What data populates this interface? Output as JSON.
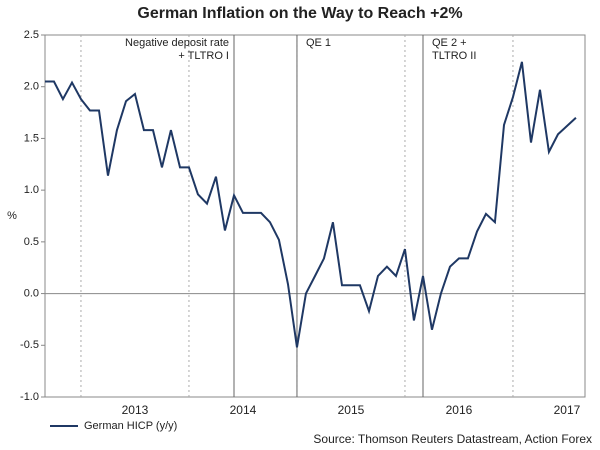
{
  "chart_data": {
    "type": "line",
    "title": "German Inflation on the Way to Reach +2%",
    "y_label": "%",
    "source": "Source: Thomson Reuters Datastream, Action Forex",
    "x": [
      2012.667,
      2012.75,
      2012.833,
      2012.917,
      2013,
      2013.083,
      2013.167,
      2013.25,
      2013.333,
      2013.417,
      2013.5,
      2013.583,
      2013.667,
      2013.75,
      2013.833,
      2013.917,
      2014,
      2014.083,
      2014.167,
      2014.25,
      2014.333,
      2014.417,
      2014.5,
      2014.583,
      2014.667,
      2014.75,
      2014.833,
      2014.917,
      2015,
      2015.083,
      2015.167,
      2015.25,
      2015.333,
      2015.417,
      2015.5,
      2015.583,
      2015.667,
      2015.75,
      2015.833,
      2015.917,
      2016,
      2016.083,
      2016.167,
      2016.25,
      2016.333,
      2016.417,
      2016.5,
      2016.583,
      2016.667,
      2016.75,
      2016.833,
      2016.917,
      2017,
      2017.083,
      2017.167,
      2017.25,
      2017.333,
      2017.417,
      2017.5,
      2017.583
    ],
    "series": [
      {
        "name": "German HICP (y/y)",
        "color": "#1f3864",
        "values": [
          2.05,
          2.05,
          1.88,
          2.04,
          1.88,
          1.77,
          1.77,
          1.14,
          1.58,
          1.86,
          1.93,
          1.58,
          1.58,
          1.22,
          1.58,
          1.22,
          1.22,
          0.96,
          0.87,
          1.13,
          0.61,
          0.95,
          0.78,
          0.78,
          0.78,
          0.69,
          0.52,
          0.09,
          -0.52,
          0,
          0.17,
          0.34,
          0.69,
          0.08,
          0.08,
          0.08,
          -0.17,
          0.17,
          0.26,
          0.17,
          0.43,
          -0.26,
          0.17,
          -0.35,
          0,
          0.26,
          0.34,
          0.34,
          0.6,
          0.77,
          0.69,
          1.63,
          1.9,
          2.24,
          1.46,
          1.97,
          1.37,
          1.54,
          1.62,
          1.7
        ]
      }
    ],
    "xlim": [
      2012.667,
      2017.667
    ],
    "xticks": [
      {
        "value": 2013.5,
        "label": "2013"
      },
      {
        "value": 2014.5,
        "label": "2014"
      },
      {
        "value": 2015.5,
        "label": "2015"
      },
      {
        "value": 2016.5,
        "label": "2016"
      },
      {
        "value": 2017.5,
        "label": "2017"
      }
    ],
    "x_grid": [
      2013,
      2014,
      2015,
      2016,
      2017
    ],
    "ylim": [
      -1,
      2.5
    ],
    "yticks": [
      {
        "value": -1,
        "label": "-1.0"
      },
      -0.5,
      {
        "value": 0,
        "label": "0.0"
      },
      0.5,
      {
        "value": 1,
        "label": "1.0"
      },
      1.5,
      {
        "value": 2,
        "label": "2.0"
      },
      2.5
    ],
    "events": [
      {
        "x": 2014.417,
        "lines": [
          "Negative deposit rate",
          "+ TLTRO I"
        ],
        "side": "left"
      },
      {
        "x": 2015,
        "lines": [
          "QE 1"
        ],
        "side": "right"
      },
      {
        "x": 2016.167,
        "lines": [
          "QE 2 +",
          "TLTRO II"
        ],
        "side": "right"
      }
    ]
  }
}
